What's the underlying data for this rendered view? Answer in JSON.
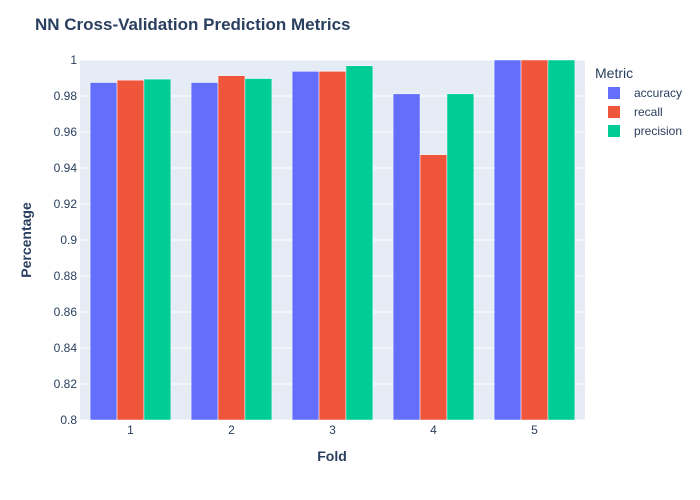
{
  "chart_data": {
    "type": "bar",
    "title": "NN Cross-Validation Prediction Metrics",
    "xlabel": "Fold",
    "ylabel": "Percentage",
    "categories": [
      "1",
      "2",
      "3",
      "4",
      "5"
    ],
    "ylim": [
      0.8,
      1.0
    ],
    "yticks": [
      0.8,
      0.82,
      0.84,
      0.86,
      0.88,
      0.9,
      0.92,
      0.94,
      0.96,
      0.98,
      1
    ],
    "ytick_labels": [
      "0.8",
      "0.82",
      "0.84",
      "0.86",
      "0.88",
      "0.9",
      "0.92",
      "0.94",
      "0.96",
      "0.98",
      "1"
    ],
    "legend": {
      "title": "Metric",
      "position": "right"
    },
    "grid": true,
    "series": [
      {
        "name": "accuracy",
        "color": "#636efa",
        "values": [
          0.9875,
          0.9875,
          0.9937,
          0.9812,
          1.0
        ]
      },
      {
        "name": "recall",
        "color": "#ef553b",
        "values": [
          0.9888,
          0.9913,
          0.9937,
          0.9474,
          1.0
        ]
      },
      {
        "name": "precision",
        "color": "#00cc96",
        "values": [
          0.9894,
          0.9897,
          0.9968,
          0.9812,
          1.0
        ]
      }
    ]
  }
}
